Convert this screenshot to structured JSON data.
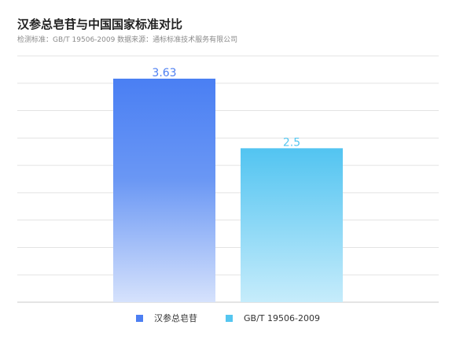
{
  "title": "汉参总皂苷与中国国家标准对比",
  "subtitle": "检测标准：GB/T 19506-2009  数据来源：通标标准技术服务有限公司",
  "colors": {
    "series1": "#4d7ff2",
    "series2": "#55c6f0",
    "grid": "#e3e3e3",
    "axis": "#c8c8c8"
  },
  "chart_data": {
    "type": "bar",
    "categories": [
      "汉参总皂苷",
      "GB/T 19506-2009"
    ],
    "values": [
      3.63,
      2.5
    ],
    "data_labels": [
      "3.63",
      "2.5"
    ],
    "ylim": [
      0,
      4
    ],
    "grid": true,
    "legend": "bottom",
    "title": "汉参总皂苷与中国国家标准对比",
    "xlabel": "",
    "ylabel": ""
  },
  "legend": [
    {
      "label": "汉参总皂苷",
      "color": "#4d7ff2"
    },
    {
      "label": "GB/T 19506-2009",
      "color": "#55c6f0"
    }
  ]
}
